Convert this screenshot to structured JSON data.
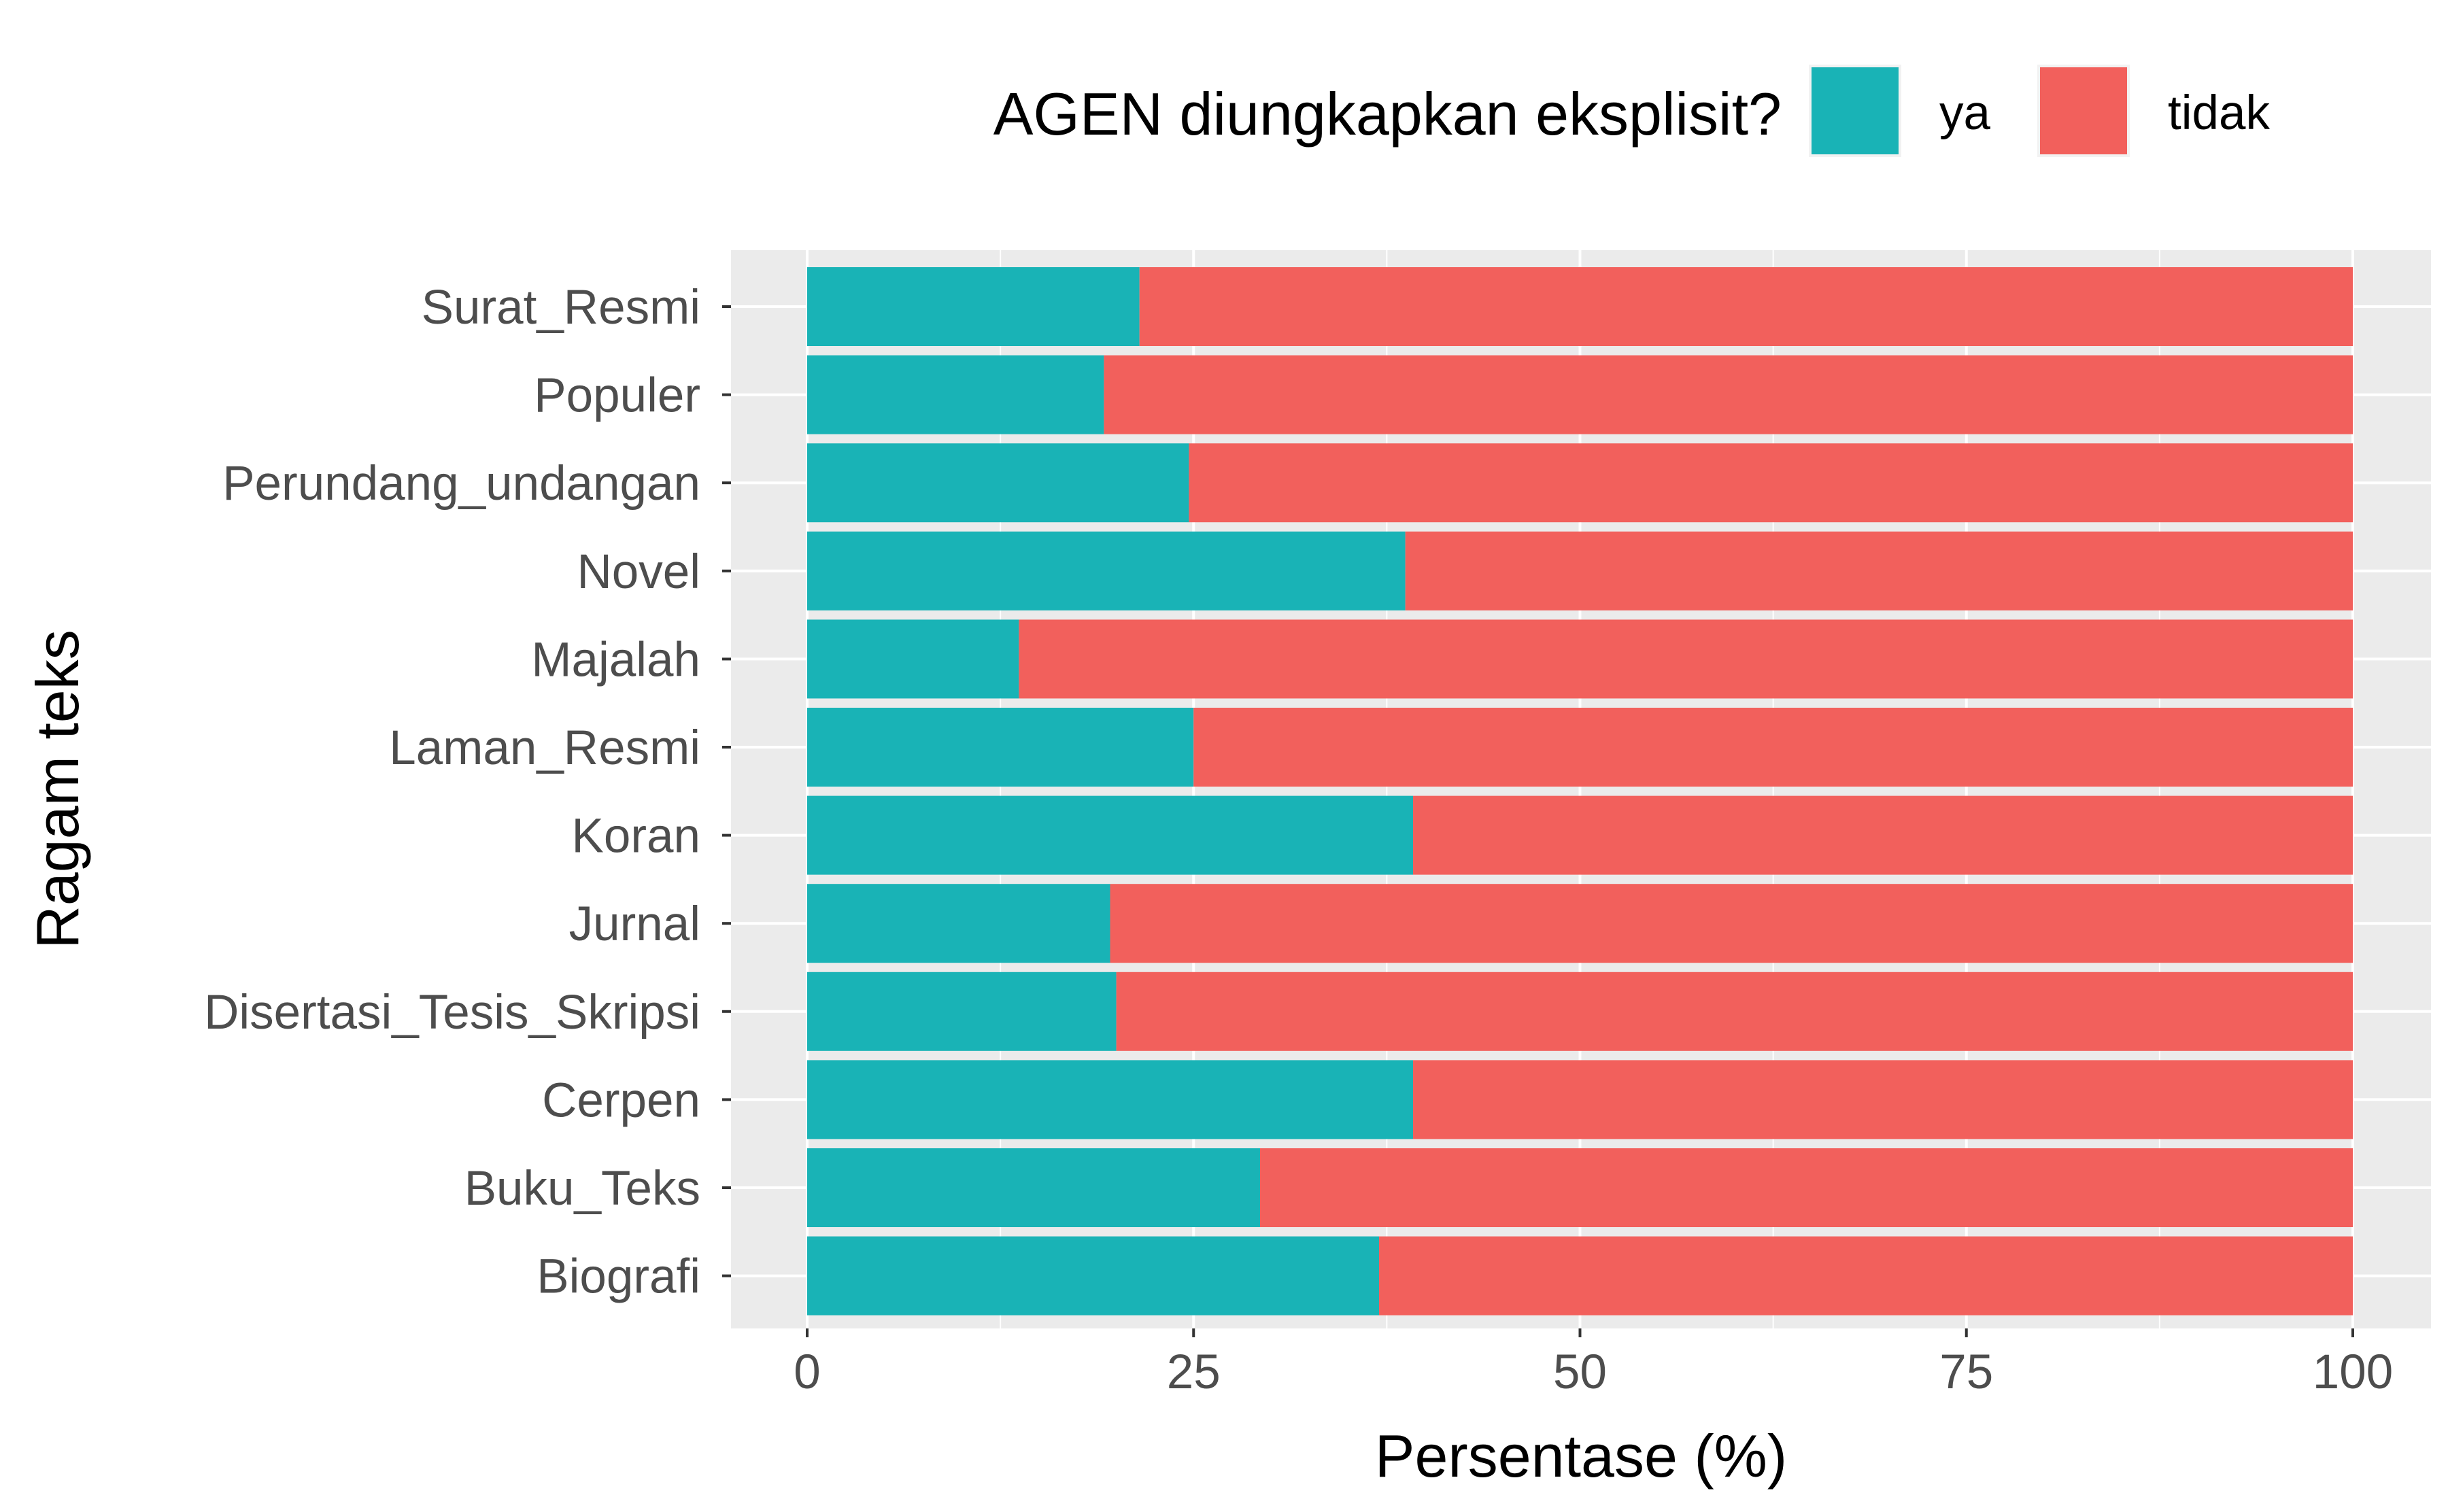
{
  "chart_data": {
    "type": "bar",
    "orientation": "horizontal",
    "stacked": true,
    "xlabel": "Persentase (%)",
    "ylabel": "Ragam teks",
    "xlim": [
      0,
      100
    ],
    "x_ticks": [
      "0",
      "25",
      "50",
      "75",
      "100"
    ],
    "grid": true,
    "legend": {
      "title": "AGEN diungkapkan eksplisit?",
      "placement": "top"
    },
    "categories": [
      "Surat_Resmi",
      "Populer",
      "Perundang_undangan",
      "Novel",
      "Majalah",
      "Laman_Resmi",
      "Koran",
      "Jurnal",
      "Disertasi_Tesis_Skripsi",
      "Cerpen",
      "Buku_Teks",
      "Biografi"
    ],
    "series": [
      {
        "name": "ya",
        "color": "#19b3b6",
        "values": [
          21.5,
          19.2,
          24.7,
          38.7,
          13.7,
          25.0,
          39.2,
          19.6,
          20.0,
          39.2,
          29.3,
          37.0
        ]
      },
      {
        "name": "tidak",
        "color": "#f2605c",
        "values": [
          78.5,
          80.8,
          75.3,
          61.3,
          86.3,
          75.0,
          60.8,
          80.4,
          80.0,
          60.8,
          70.7,
          63.0
        ]
      }
    ]
  }
}
